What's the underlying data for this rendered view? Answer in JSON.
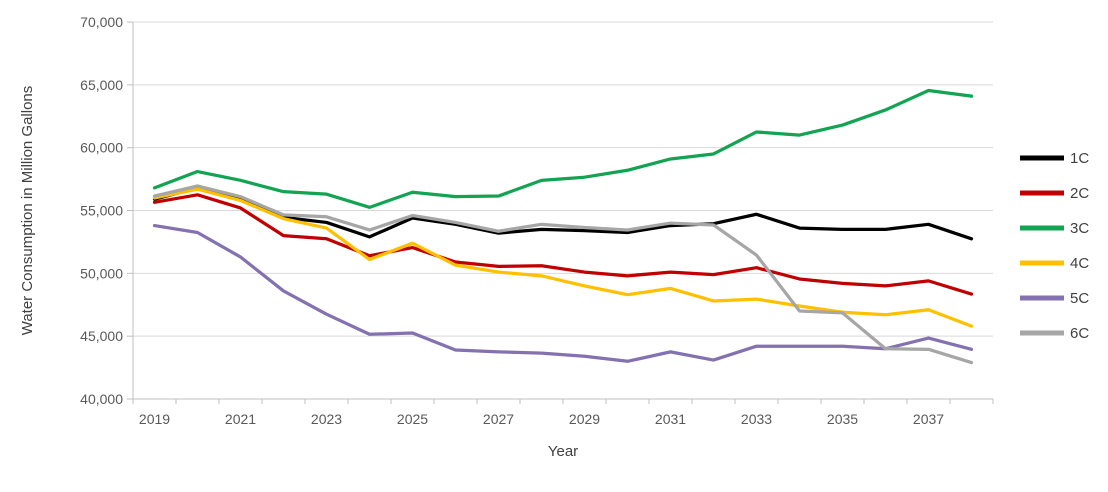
{
  "chart_data": {
    "type": "line",
    "title": "",
    "xlabel": "Year",
    "ylabel": "Water Consumption in Million Gallons",
    "x": [
      2019,
      2020,
      2021,
      2022,
      2023,
      2024,
      2025,
      2026,
      2027,
      2028,
      2029,
      2030,
      2031,
      2032,
      2033,
      2034,
      2035,
      2036,
      2037,
      2038
    ],
    "x_tick_labels": [
      "2019",
      "2021",
      "2023",
      "2025",
      "2027",
      "2029",
      "2031",
      "2033",
      "2035",
      "2037"
    ],
    "ylim": [
      40000,
      70000
    ],
    "y_ticks": [
      40000,
      45000,
      50000,
      55000,
      60000,
      65000,
      70000
    ],
    "y_tick_labels": [
      "40,000",
      "45,000",
      "50,000",
      "55,000",
      "60,000",
      "65,000",
      "70,000"
    ],
    "grid": "horizontal",
    "legend_position": "right",
    "series": [
      {
        "name": "1C",
        "color": "#000000",
        "values": [
          55900,
          56800,
          55900,
          54450,
          54050,
          52900,
          54400,
          53900,
          53200,
          53500,
          53400,
          53250,
          53800,
          53950,
          54700,
          53600,
          53500,
          53500,
          53900,
          52750
        ]
      },
      {
        "name": "2C",
        "color": "#C00000",
        "values": [
          55650,
          56250,
          55200,
          53000,
          52750,
          51400,
          52050,
          50900,
          50550,
          50600,
          50100,
          49800,
          50100,
          49900,
          50450,
          49550,
          49200,
          49000,
          49400,
          48350
        ]
      },
      {
        "name": "3C",
        "color": "#12A452",
        "values": [
          56800,
          58100,
          57400,
          56500,
          56300,
          55250,
          56450,
          56100,
          56150,
          57400,
          57650,
          58200,
          59100,
          59500,
          61250,
          61000,
          61800,
          63000,
          64550,
          64100
        ]
      },
      {
        "name": "4C",
        "color": "#FFC000",
        "values": [
          56000,
          56700,
          55800,
          54350,
          53600,
          51100,
          52400,
          50650,
          50100,
          49800,
          49000,
          48300,
          48800,
          47800,
          47950,
          47400,
          46900,
          46700,
          47100,
          45800
        ]
      },
      {
        "name": "5C",
        "color": "#8471AF",
        "values": [
          53800,
          53250,
          51300,
          48600,
          46750,
          45150,
          45250,
          43900,
          43750,
          43650,
          43400,
          43000,
          43750,
          43100,
          44200,
          44200,
          44200,
          44000,
          44850,
          43950
        ]
      },
      {
        "name": "6C",
        "color": "#A6A6A6",
        "values": [
          56150,
          56950,
          56100,
          54650,
          54500,
          53450,
          54600,
          54050,
          53350,
          53900,
          53650,
          53450,
          54000,
          53850,
          51450,
          47000,
          46850,
          44000,
          43950,
          42900
        ]
      }
    ]
  },
  "colors": {
    "background": "#FFFFFF",
    "gridline": "#D9D9D9",
    "axis_line": "#BFBFBF",
    "tick_text": "#595959",
    "title_text": "#404040"
  }
}
